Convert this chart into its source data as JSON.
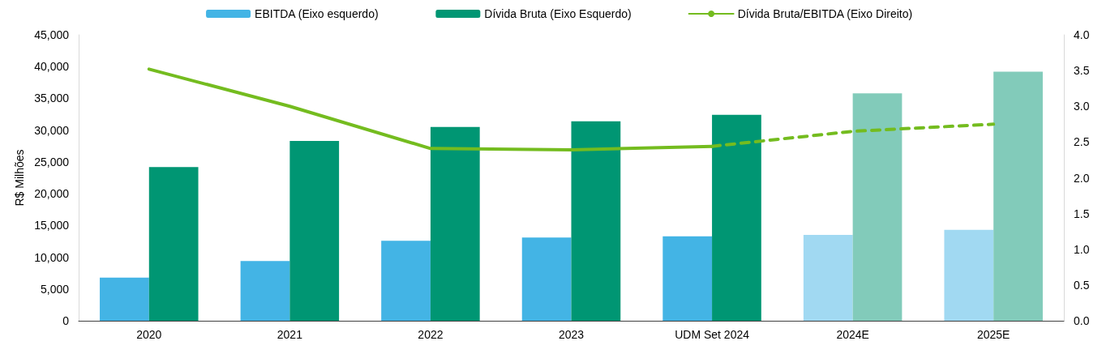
{
  "chart_data": {
    "type": "bar",
    "ylabel": "R$ Milhões",
    "categories": [
      "2020",
      "2021",
      "2022",
      "2023",
      "UDM Set 2024",
      "2024E",
      "2025E"
    ],
    "series": [
      {
        "name": "EBITDA (Eixo esquerdo)",
        "color": "#43b4e5",
        "colors": [
          "#43b4e5",
          "#43b4e5",
          "#43b4e5",
          "#43b4e5",
          "#43b4e5",
          "#a1d9f2",
          "#a1d9f2"
        ],
        "values": [
          6800,
          9400,
          12600,
          13100,
          13300,
          13500,
          14300
        ]
      },
      {
        "name": "Dívida Bruta (Eixo Esquerdo)",
        "color": "#009673",
        "colors": [
          "#009673",
          "#009673",
          "#009673",
          "#009673",
          "#009673",
          "#82cbba",
          "#82cbba"
        ],
        "values": [
          24200,
          28300,
          30500,
          31400,
          32400,
          35800,
          39200
        ]
      },
      {
        "name": "Dívida Bruta/EBITDA (Eixo Direito)",
        "type": "line",
        "axis": "y2",
        "color": "#74bc1f",
        "line_style": "solid",
        "values": [
          3.52,
          3.0,
          2.41,
          2.39,
          2.44,
          null,
          null
        ]
      },
      {
        "type": "line",
        "axis": "y2",
        "color": "#74bc1f",
        "line_style": "dashed",
        "values": [
          null,
          null,
          null,
          null,
          2.44,
          2.65,
          2.75
        ]
      }
    ],
    "ylim": [
      0,
      45000
    ],
    "yticks": [
      0,
      {
        "value": 5000,
        "label": "5,000"
      },
      {
        "value": 10000,
        "label": "10,000"
      },
      {
        "value": 15000,
        "label": "15,000"
      },
      {
        "value": 20000,
        "label": "20,000"
      },
      {
        "value": 25000,
        "label": "25,000"
      },
      {
        "value": 30000,
        "label": "30,000"
      },
      {
        "value": 35000,
        "label": "35,000"
      },
      {
        "value": 40000,
        "label": "40,000"
      },
      {
        "value": 45000,
        "label": "45,000"
      }
    ],
    "y2lim": [
      0,
      4
    ],
    "y2ticks": [
      {
        "value": 0,
        "label": "0.0"
      },
      {
        "value": 0.5,
        "label": "0.5"
      },
      {
        "value": 1,
        "label": "1.0"
      },
      {
        "value": 1.5,
        "label": "1.5"
      },
      {
        "value": 2,
        "label": "2.0"
      },
      {
        "value": 2.5,
        "label": "2.5"
      },
      {
        "value": 3,
        "label": "3.0"
      },
      {
        "value": 3.5,
        "label": "3.5"
      },
      {
        "value": 4,
        "label": "4.0"
      }
    ],
    "grid": false,
    "legend": "top",
    "marker": "none"
  }
}
